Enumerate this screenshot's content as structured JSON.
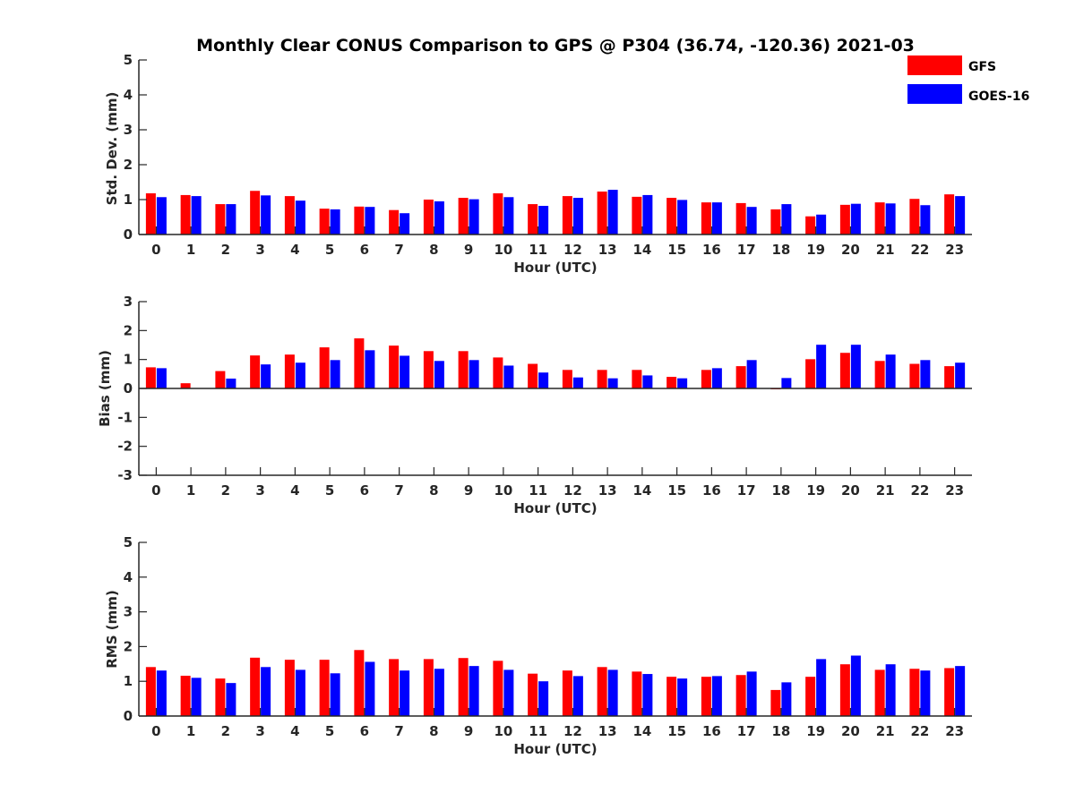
{
  "title": "Monthly Clear CONUS Comparison to GPS @ P304 (36.74, -120.36) 2021-03",
  "legend": {
    "placement": "top-right",
    "entries": [
      {
        "name": "GFS",
        "color": "#ff0000"
      },
      {
        "name": "GOES-16",
        "color": "#0000ff"
      }
    ]
  },
  "chart_data": [
    {
      "type": "bar",
      "xlabel": "Hour (UTC)",
      "ylabel": "Std. Dev. (mm)",
      "ylim": [
        0,
        5
      ],
      "yticks": [
        0,
        1,
        2,
        3,
        4,
        5
      ],
      "categories": [
        "0",
        "1",
        "2",
        "3",
        "4",
        "5",
        "6",
        "7",
        "8",
        "9",
        "10",
        "11",
        "12",
        "13",
        "14",
        "15",
        "16",
        "17",
        "18",
        "19",
        "20",
        "21",
        "22",
        "23"
      ],
      "series": [
        {
          "name": "GFS",
          "color": "#ff0000",
          "values": [
            1.18,
            1.13,
            0.87,
            1.25,
            1.1,
            0.74,
            0.8,
            0.7,
            1.0,
            1.05,
            1.18,
            0.87,
            1.1,
            1.23,
            1.08,
            1.05,
            0.92,
            0.9,
            0.72,
            0.52,
            0.85,
            0.92,
            1.02,
            1.15
          ]
        },
        {
          "name": "GOES-16",
          "color": "#0000ff",
          "values": [
            1.07,
            1.1,
            0.87,
            1.12,
            0.97,
            0.72,
            0.79,
            0.61,
            0.95,
            1.01,
            1.07,
            0.82,
            1.05,
            1.28,
            1.13,
            0.99,
            0.92,
            0.79,
            0.87,
            0.57,
            0.88,
            0.89,
            0.84,
            1.1
          ]
        }
      ]
    },
    {
      "type": "bar",
      "xlabel": "Hour (UTC)",
      "ylabel": "Bias (mm)",
      "ylim": [
        -3,
        3
      ],
      "yticks": [
        -3,
        -2,
        -1,
        0,
        1,
        2,
        3
      ],
      "categories": [
        "0",
        "1",
        "2",
        "3",
        "4",
        "5",
        "6",
        "7",
        "8",
        "9",
        "10",
        "11",
        "12",
        "13",
        "14",
        "15",
        "16",
        "17",
        "18",
        "19",
        "20",
        "21",
        "22",
        "23"
      ],
      "series": [
        {
          "name": "GFS",
          "color": "#ff0000",
          "values": [
            0.73,
            0.18,
            0.6,
            1.14,
            1.17,
            1.42,
            1.73,
            1.48,
            1.29,
            1.29,
            1.07,
            0.85,
            0.64,
            0.64,
            0.64,
            0.4,
            0.64,
            0.77,
            -0.03,
            1.01,
            1.23,
            0.95,
            0.85,
            0.77
          ]
        },
        {
          "name": "GOES-16",
          "color": "#0000ff",
          "values": [
            0.7,
            0.0,
            0.34,
            0.83,
            0.89,
            0.98,
            1.32,
            1.13,
            0.95,
            0.98,
            0.79,
            0.55,
            0.38,
            0.35,
            0.45,
            0.35,
            0.7,
            0.98,
            0.36,
            1.51,
            1.51,
            1.17,
            0.98,
            0.89
          ]
        }
      ]
    },
    {
      "type": "bar",
      "xlabel": "Hour (UTC)",
      "ylabel": "RMS (mm)",
      "ylim": [
        0,
        5
      ],
      "yticks": [
        0,
        1,
        2,
        3,
        4,
        5
      ],
      "categories": [
        "0",
        "1",
        "2",
        "3",
        "4",
        "5",
        "6",
        "7",
        "8",
        "9",
        "10",
        "11",
        "12",
        "13",
        "14",
        "15",
        "16",
        "17",
        "18",
        "19",
        "20",
        "21",
        "22",
        "23"
      ],
      "series": [
        {
          "name": "GFS",
          "color": "#ff0000",
          "values": [
            1.41,
            1.16,
            1.08,
            1.68,
            1.62,
            1.62,
            1.9,
            1.64,
            1.64,
            1.67,
            1.59,
            1.22,
            1.31,
            1.41,
            1.28,
            1.13,
            1.13,
            1.18,
            0.75,
            1.13,
            1.49,
            1.33,
            1.36,
            1.38
          ]
        },
        {
          "name": "GOES-16",
          "color": "#0000ff",
          "values": [
            1.31,
            1.1,
            0.95,
            1.41,
            1.33,
            1.23,
            1.56,
            1.31,
            1.36,
            1.44,
            1.33,
            1.0,
            1.15,
            1.33,
            1.21,
            1.08,
            1.15,
            1.28,
            0.97,
            1.64,
            1.74,
            1.49,
            1.31,
            1.44
          ]
        }
      ]
    }
  ]
}
